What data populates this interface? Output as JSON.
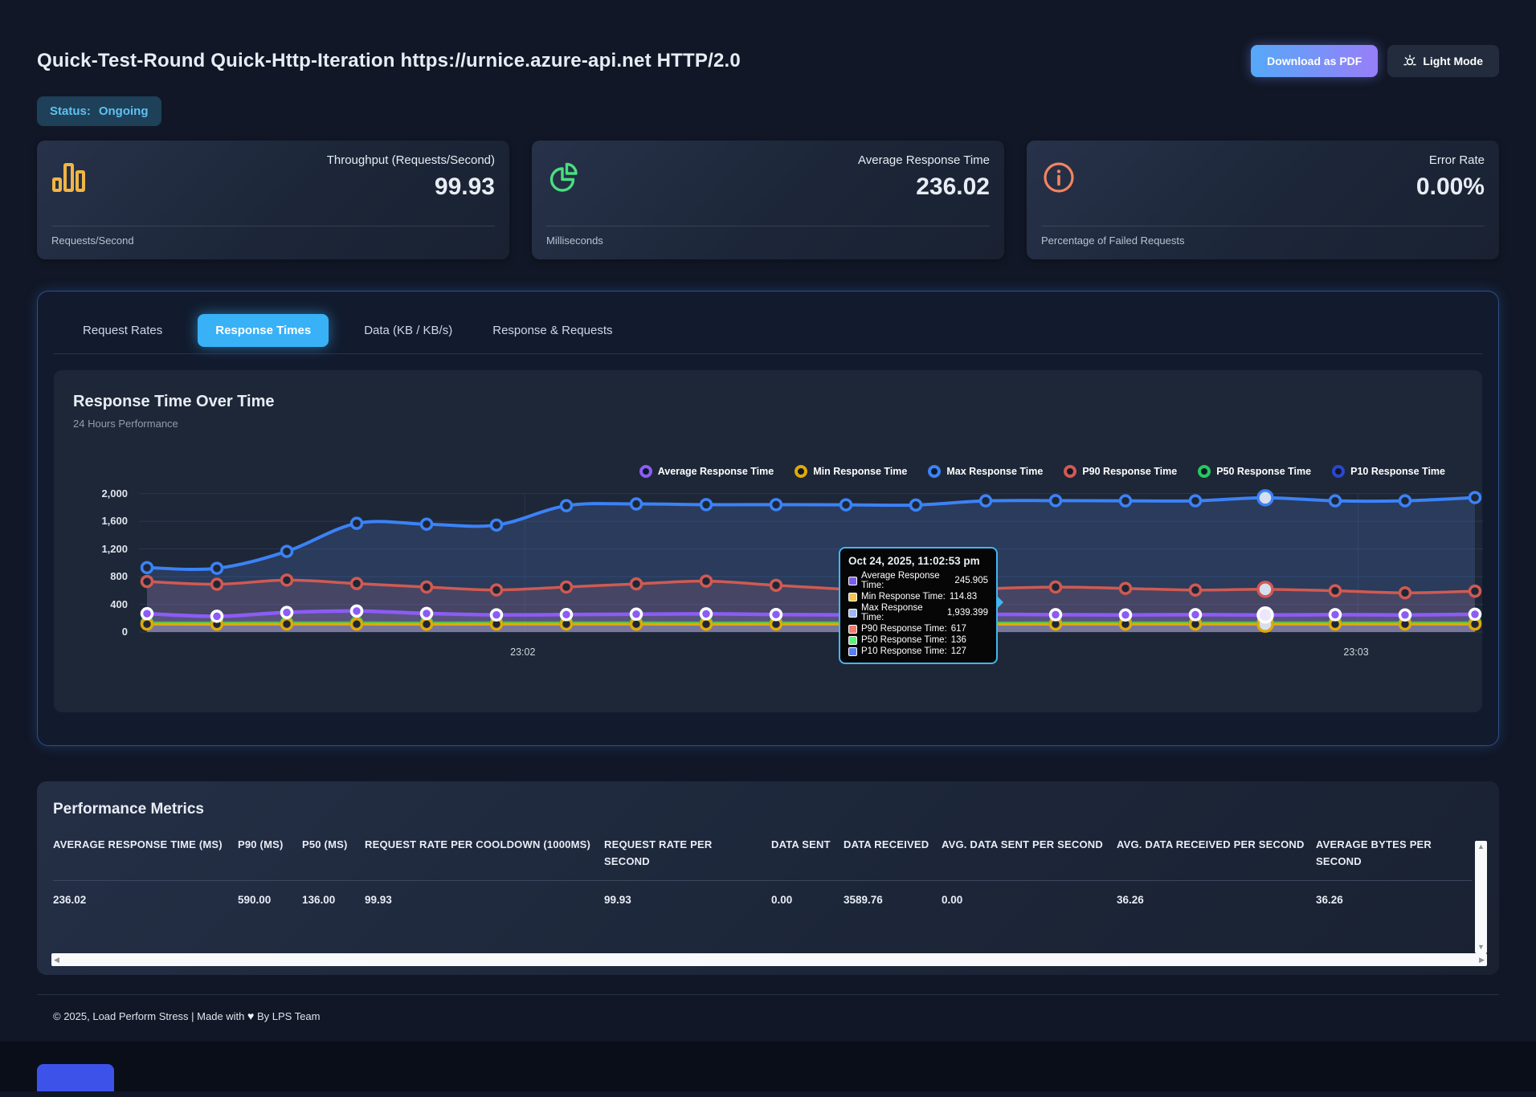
{
  "header": {
    "title": "Quick-Test-Round Quick-Http-Iteration https://urnice.azure-api.net HTTP/2.0",
    "download_pdf_label": "Download as PDF",
    "light_mode_label": "Light Mode",
    "status_label": "Status:",
    "status_value": "Ongoing"
  },
  "summary_cards": [
    {
      "title": "Throughput (Requests/Second)",
      "value": "99.93",
      "subtitle": "Requests/Second",
      "icon": "bar-chart-icon",
      "accent": "#f0b545"
    },
    {
      "title": "Average Response Time",
      "value": "236.02",
      "subtitle": "Milliseconds",
      "icon": "pie-chart-icon",
      "accent": "#4ade80"
    },
    {
      "title": "Error Rate",
      "value": "0.00%",
      "subtitle": "Percentage of Failed Requests",
      "icon": "info-icon",
      "accent": "#f4845f"
    }
  ],
  "tabs": [
    {
      "label": "Request Rates",
      "active": false
    },
    {
      "label": "Response Times",
      "active": true
    },
    {
      "label": "Data (KB / KB/s)",
      "active": false
    },
    {
      "label": "Response & Requests",
      "active": false
    }
  ],
  "chart_data": {
    "type": "line",
    "title": "Response Time Over Time",
    "subtitle": "24 Hours Performance",
    "grid": true,
    "legend_position": "top-right",
    "y_axis": {
      "min": 0,
      "max": 2000,
      "tick_step": 400,
      "tick_labels": [
        "0",
        "400",
        "800",
        "1,200",
        "1,600",
        "2,000"
      ]
    },
    "x_axis": {
      "tick_labels": [
        {
          "label": "23:02",
          "position": 0.287
        },
        {
          "label": "23:03",
          "position": 0.907
        }
      ]
    },
    "series": [
      {
        "name": "Average Response Time",
        "color": "#8b5cf6",
        "values": [
          265,
          228,
          283,
          303,
          268,
          248,
          252,
          258,
          263,
          253,
          248,
          251,
          255,
          251,
          247,
          251,
          245.905,
          251,
          247,
          257
        ]
      },
      {
        "name": "Min Response Time",
        "color": "#e0a90a",
        "values": [
          114,
          113,
          115,
          114,
          113,
          114,
          115,
          114,
          113,
          114,
          115,
          114,
          113,
          114,
          115,
          114,
          114.83,
          114,
          115,
          114
        ]
      },
      {
        "name": "Max Response Time",
        "color": "#3b82f6",
        "values": [
          930,
          920,
          1165,
          1570,
          1558,
          1545,
          1825,
          1850,
          1840,
          1840,
          1838,
          1835,
          1895,
          1898,
          1895,
          1896,
          1939.399,
          1895,
          1896,
          1942
        ]
      },
      {
        "name": "P90 Response Time",
        "color": "#d05a52",
        "values": [
          730,
          690,
          750,
          700,
          650,
          608,
          650,
          695,
          735,
          675,
          620,
          592,
          625,
          650,
          630,
          606,
          617,
          596,
          566,
          590
        ]
      },
      {
        "name": "P50 Response Time",
        "color": "#27c95e",
        "values": [
          136,
          135,
          137,
          136,
          135,
          136,
          137,
          136,
          135,
          136,
          137,
          136,
          135,
          136,
          137,
          136,
          136,
          136,
          137,
          136
        ]
      },
      {
        "name": "P10 Response Time",
        "color": "#2b46cf",
        "values": [
          127,
          126,
          128,
          127,
          126,
          127,
          128,
          127,
          126,
          127,
          128,
          127,
          126,
          127,
          128,
          127,
          127,
          127,
          128,
          127
        ]
      }
    ],
    "active_point_index": 16,
    "tooltip": {
      "title": "Oct 24, 2025, 11:02:53 pm",
      "rows": [
        {
          "label": "Average Response Time:",
          "value": "245.905",
          "color": "#7c5cf0"
        },
        {
          "label": "Min Response Time:",
          "value": "114.83",
          "color": "#f5c451"
        },
        {
          "label": "Max Response Time:",
          "value": "1,939.399",
          "color": "#9db8f5"
        },
        {
          "label": "P90 Response Time:",
          "value": "617",
          "color": "#f07a6e"
        },
        {
          "label": "P50 Response Time:",
          "value": "136",
          "color": "#5df07a"
        },
        {
          "label": "P10 Response Time:",
          "value": "127",
          "color": "#5b7ef5"
        }
      ]
    }
  },
  "metrics": {
    "title": "Performance Metrics",
    "columns": [
      "AVERAGE RESPONSE TIME (MS)",
      "P90 (MS)",
      "P50 (MS)",
      "REQUEST RATE PER COOLDOWN (1000MS)",
      "REQUEST RATE PER SECOND",
      "DATA SENT",
      "DATA RECEIVED",
      "AVG. DATA SENT PER SECOND",
      "AVG. DATA RECEIVED PER SECOND",
      "AVERAGE BYTES PER SECOND"
    ],
    "rows": [
      [
        "236.02",
        "590.00",
        "136.00",
        "99.93",
        "99.93",
        "0.00",
        "3589.76",
        "0.00",
        "36.26",
        "36.26"
      ]
    ]
  },
  "footer": {
    "pre": "© 2025, Load Perform Stress | Made with",
    "heart": "♥",
    "post": "By LPS Team"
  }
}
